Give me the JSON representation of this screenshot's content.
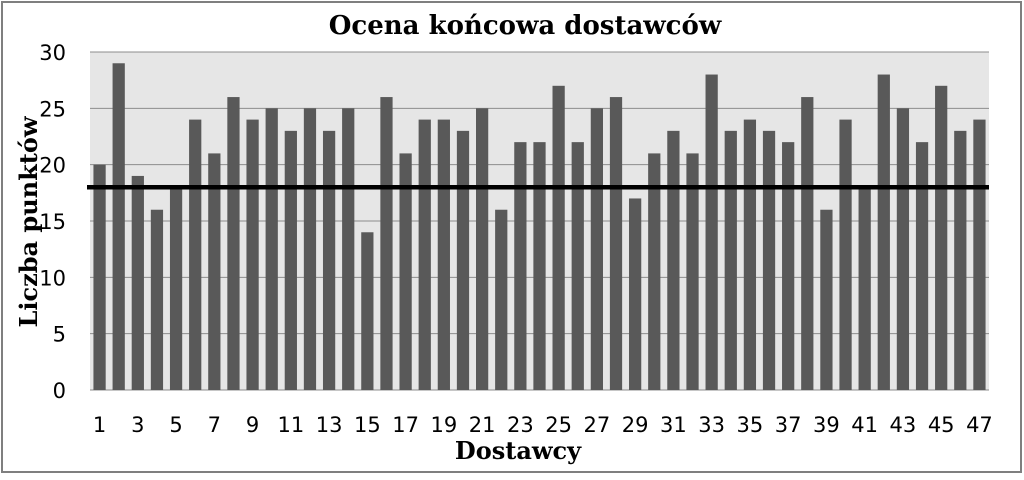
{
  "chart_data": {
    "type": "bar",
    "title": "Ocena końcowa dostawców",
    "xlabel": "Dostawcy",
    "ylabel": "Liczba punktów",
    "categories": [
      "1",
      "2",
      "3",
      "4",
      "5",
      "6",
      "7",
      "8",
      "9",
      "10",
      "11",
      "12",
      "13",
      "14",
      "15",
      "16",
      "17",
      "18",
      "19",
      "20",
      "21",
      "22",
      "23",
      "24",
      "25",
      "26",
      "27",
      "28",
      "29",
      "30",
      "31",
      "32",
      "33",
      "34",
      "35",
      "36",
      "37",
      "38",
      "39",
      "40",
      "41",
      "42",
      "43",
      "44",
      "45",
      "46",
      "47"
    ],
    "x_tick_labels": [
      "1",
      "3",
      "5",
      "7",
      "9",
      "11",
      "13",
      "15",
      "17",
      "19",
      "21",
      "23",
      "25",
      "27",
      "29",
      "31",
      "33",
      "35",
      "37",
      "39",
      "41",
      "43",
      "45",
      "47"
    ],
    "values": [
      20,
      29,
      19,
      16,
      18,
      24,
      21,
      26,
      24,
      25,
      23,
      25,
      23,
      25,
      14,
      26,
      21,
      24,
      24,
      23,
      25,
      16,
      22,
      22,
      27,
      22,
      25,
      26,
      17,
      21,
      23,
      21,
      28,
      23,
      24,
      23,
      22,
      26,
      16,
      24,
      18,
      28,
      25,
      22,
      27,
      23,
      24
    ],
    "ylim": [
      0,
      30
    ],
    "y_ticks": [
      "0",
      "5",
      "10",
      "15",
      "20",
      "25",
      "30"
    ],
    "threshold": 18,
    "grid": true,
    "colors": {
      "bar": "#595959",
      "plot_bg": "#e6e6e6",
      "threshold_line": "#000000",
      "grid": "#8c8c8c",
      "frame": "#7f7f7f"
    }
  }
}
